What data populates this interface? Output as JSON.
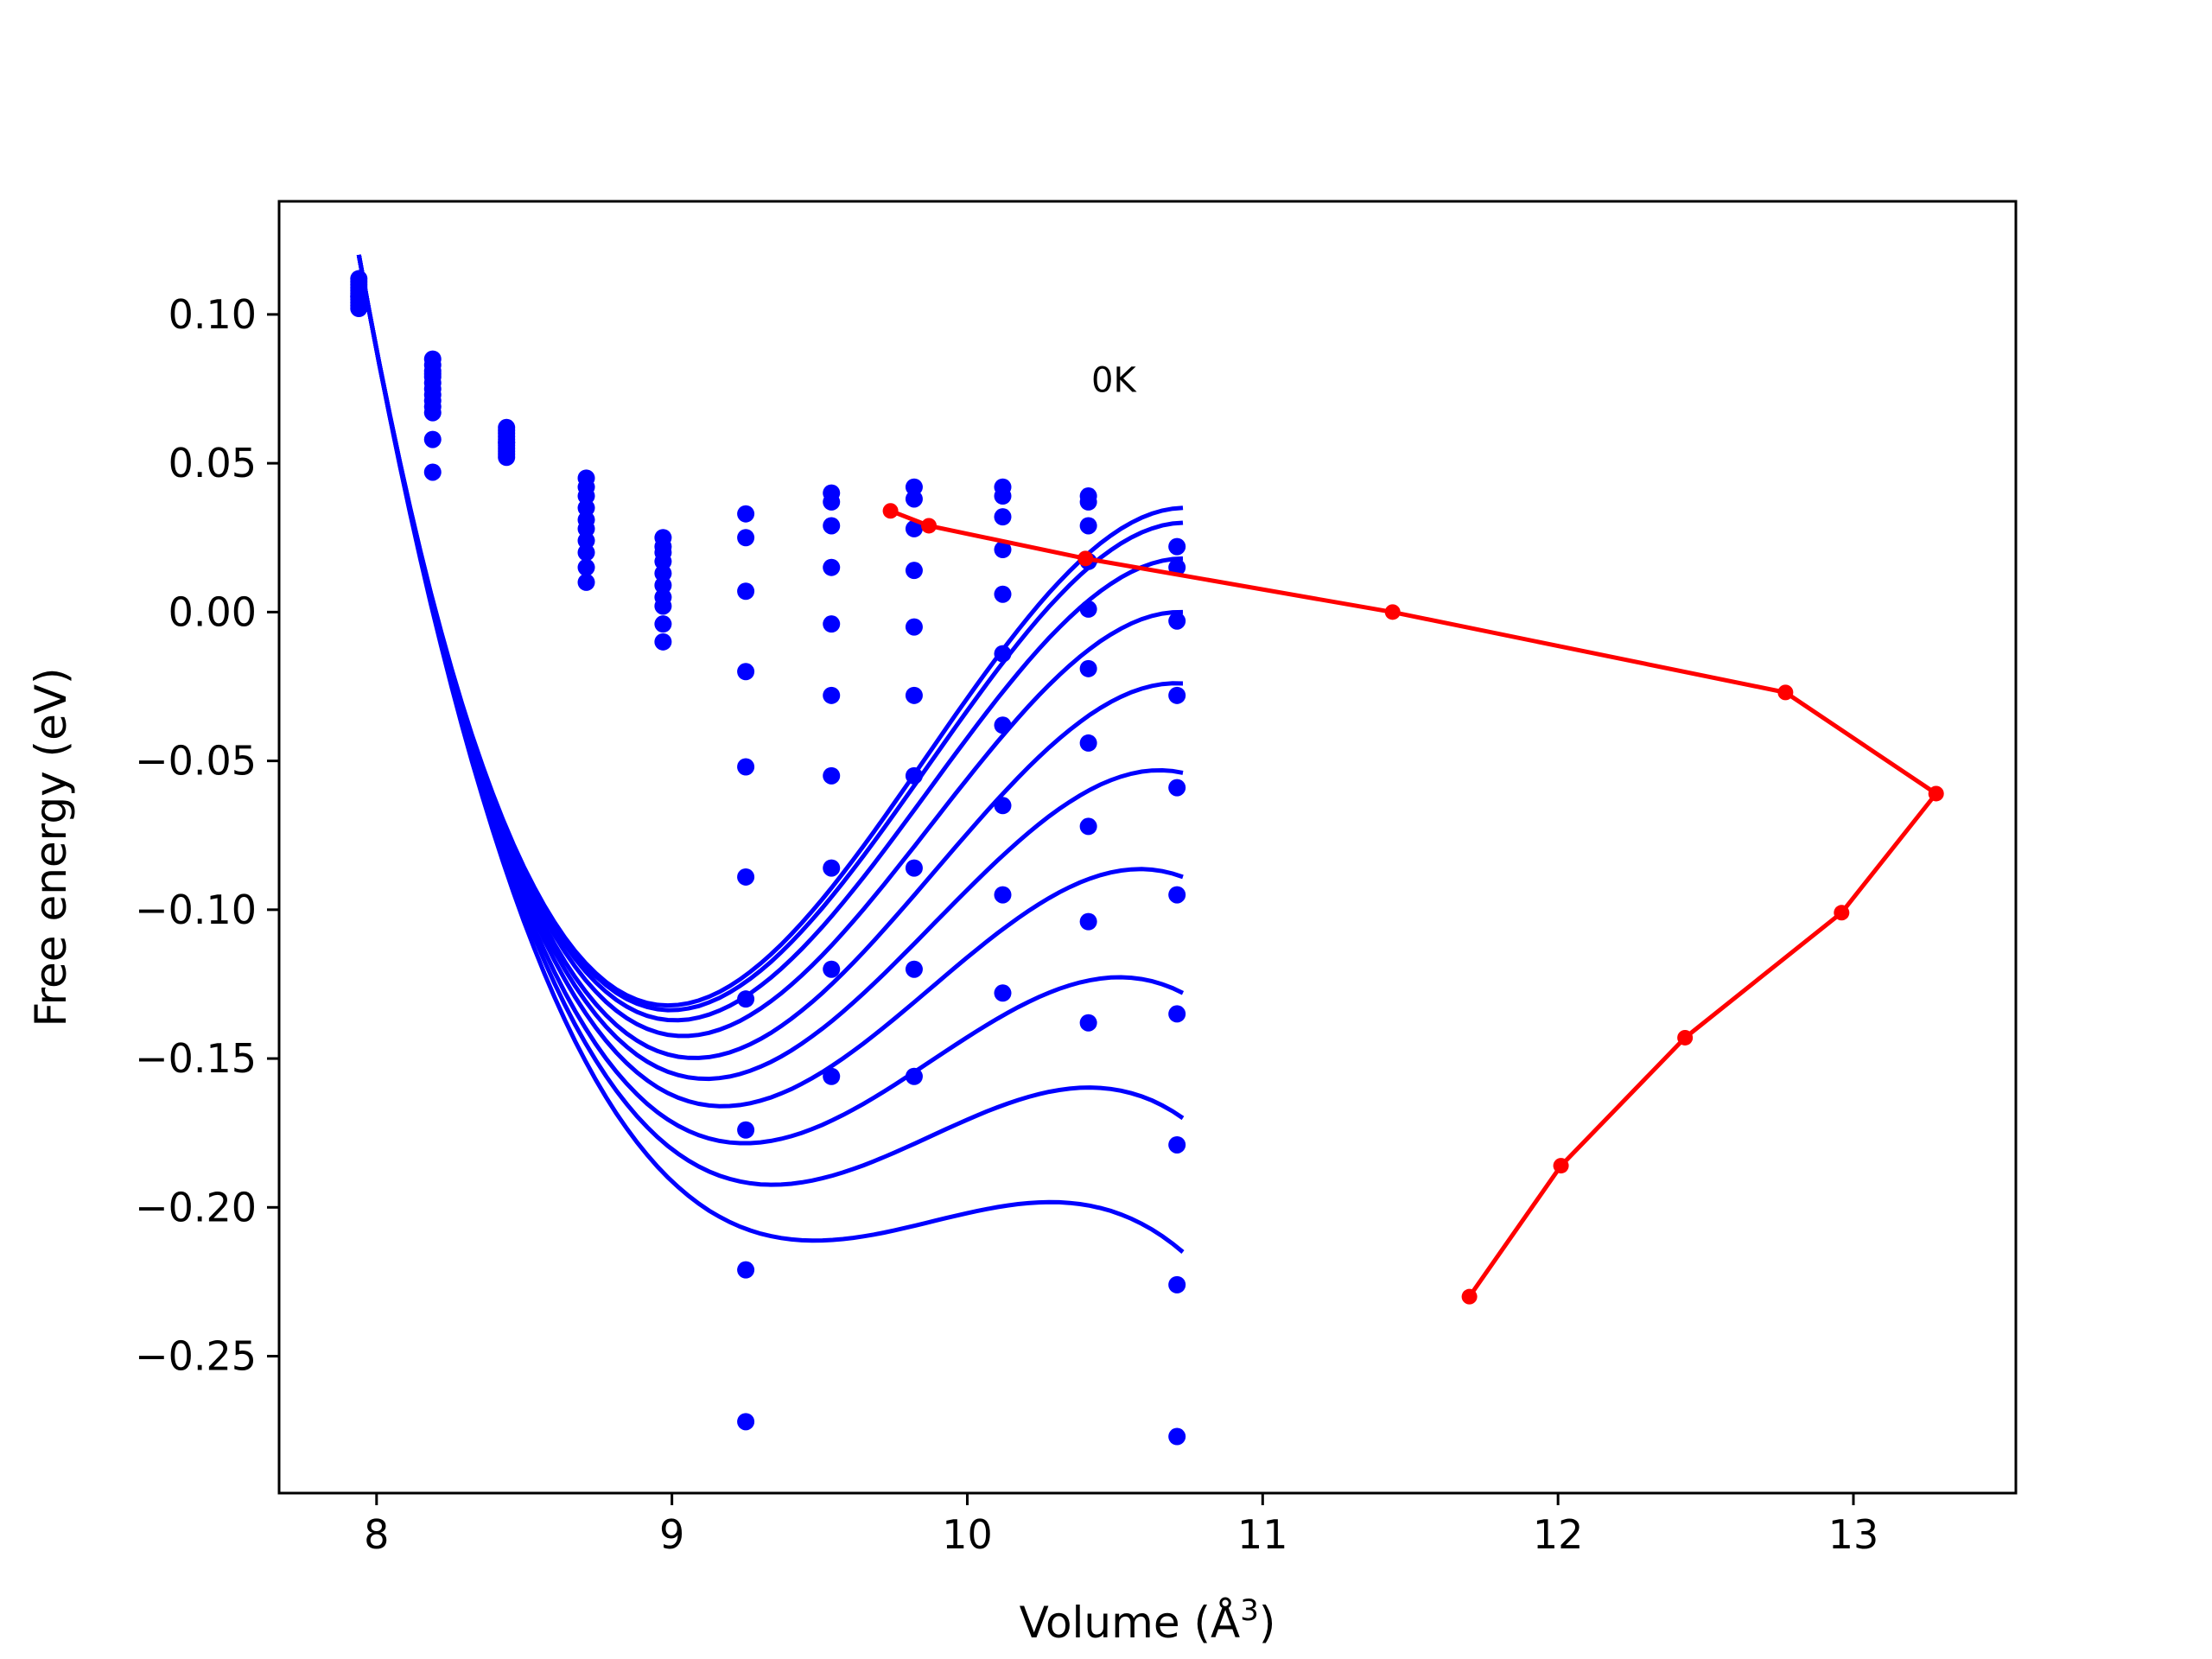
{
  "chart_data": {
    "type": "scatter",
    "title": "",
    "xlabel": "Volume (Å",
    "xlabel_sup": "3",
    "xlabel_end": ")",
    "ylabel": "Free energy (eV)",
    "xlim": [
      7.67,
      13.55
    ],
    "ylim": [
      -0.296,
      0.138
    ],
    "xticks": [
      8,
      9,
      10,
      11,
      12,
      13
    ],
    "yticks": [
      0.1,
      0.05,
      0.0,
      -0.05,
      -0.1,
      -0.15,
      -0.2,
      -0.25
    ],
    "ytick_labels": [
      "0.10",
      "0.05",
      "0.00",
      "−0.05",
      "−0.10",
      "−0.15",
      "−0.20",
      "−0.25"
    ],
    "grid": false,
    "annotation": {
      "text": "0K",
      "x": 10.42,
      "y": 0.074
    },
    "colors": {
      "fit": "#0000ff",
      "points": "#0000ff",
      "minima": "#ff0000"
    },
    "volumes": [
      7.94,
      8.19,
      8.44,
      8.71,
      8.97,
      9.25,
      9.54,
      9.82,
      10.12,
      10.41,
      10.71
    ],
    "series": [
      {
        "fit_minimum": [
          9.74,
          0.034
        ],
        "points": [
          0.111,
          0.085,
          0.062,
          0.045,
          0.025,
          0.033,
          0.04,
          0.042,
          0.042,
          0.039,
          0.022
        ]
      },
      {
        "fit_minimum": [
          9.87,
          0.029
        ],
        "points": [
          0.11,
          0.083,
          0.061,
          0.042,
          0.022,
          0.025,
          0.037,
          0.038,
          0.039,
          0.037,
          0.015
        ]
      },
      {
        "fit_minimum": [
          10.4,
          0.018
        ],
        "points": [
          0.109,
          0.081,
          0.059,
          0.039,
          0.02,
          0.007,
          0.029,
          0.028,
          0.032,
          0.029,
          -0.003
        ]
      },
      {
        "fit_minimum": [
          11.44,
          0.0
        ],
        "points": [
          0.108,
          0.079,
          0.058,
          0.035,
          0.017,
          -0.02,
          0.015,
          0.014,
          0.021,
          0.017,
          -0.028
        ]
      },
      {
        "fit_minimum": [
          12.77,
          -0.027
        ],
        "points": [
          0.107,
          0.077,
          0.057,
          0.031,
          0.013,
          -0.052,
          -0.004,
          -0.005,
          0.006,
          0.001,
          -0.059
        ]
      },
      {
        "fit_minimum": [
          13.28,
          -0.061
        ],
        "points": [
          0.106,
          0.075,
          0.056,
          0.028,
          0.009,
          -0.089,
          -0.028,
          -0.028,
          -0.014,
          -0.019,
          -0.095
        ]
      },
      {
        "fit_minimum": [
          12.96,
          -0.101
        ],
        "points": [
          0.105,
          0.073,
          0.055,
          0.024,
          0.005,
          -0.13,
          -0.055,
          -0.055,
          -0.038,
          -0.044,
          -0.135
        ]
      },
      {
        "fit_minimum": [
          12.43,
          -0.143
        ],
        "points": [
          0.104,
          0.071,
          0.054,
          0.02,
          0.002,
          -0.174,
          -0.086,
          -0.086,
          -0.065,
          -0.072,
          -0.179
        ]
      },
      {
        "fit_minimum": [
          12.01,
          -0.186
        ],
        "points": [
          0.103,
          0.069,
          0.053,
          0.015,
          -0.004,
          -0.221,
          -0.12,
          -0.12,
          -0.095,
          -0.104,
          -0.226
        ]
      },
      {
        "fit_minimum": [
          11.7,
          -0.23
        ],
        "points": [
          0.102,
          0.058,
          0.052,
          0.01,
          -0.01,
          -0.272,
          -0.156,
          -0.156,
          -0.128,
          -0.138,
          -0.277
        ]
      }
    ],
    "fit_curves": {
      "x_range": [
        7.94,
        10.73
      ],
      "y_start": 0.12,
      "y_end": [
        0.035,
        0.03,
        0.018,
        0.0,
        -0.024,
        -0.054,
        -0.089,
        -0.128,
        -0.17,
        -0.215
      ],
      "end_slope": [
        0.002,
        0.002,
        0.0,
        -0.003,
        -0.007,
        -0.022,
        -0.038,
        -0.052,
        -0.07,
        -0.085
      ]
    },
    "extra_points": [
      {
        "x": 8.19,
        "y": 0.08
      },
      {
        "x": 8.19,
        "y": 0.067
      },
      {
        "x": 8.19,
        "y": 0.047
      },
      {
        "x": 8.44,
        "y": 0.06
      },
      {
        "x": 8.44,
        "y": 0.057
      },
      {
        "x": 7.94,
        "y": 0.112
      },
      {
        "x": 7.94,
        "y": 0.106
      }
    ]
  }
}
